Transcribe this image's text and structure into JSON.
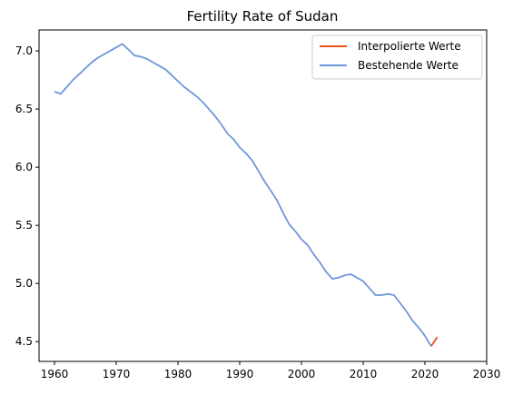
{
  "chart_data": {
    "type": "line",
    "title": "Fertility Rate of Sudan",
    "xlabel": "",
    "ylabel": "",
    "xlim": [
      1957.5,
      2030
    ],
    "ylim": [
      4.33,
      7.18
    ],
    "x_ticks": [
      1960,
      1970,
      1980,
      1990,
      2000,
      2010,
      2020,
      2030
    ],
    "y_ticks": [
      4.5,
      5.0,
      5.5,
      6.0,
      6.5,
      7.0
    ],
    "grid": false,
    "legend_position": "top-right",
    "series": [
      {
        "name": "Interpolierte Werte",
        "color": "#e8501c",
        "x": [
          2021,
          2022
        ],
        "y": [
          4.46,
          4.54
        ]
      },
      {
        "name": "Bestehende Werte",
        "color": "#6f96dc",
        "x": [
          1960,
          1961,
          1962,
          1963,
          1964,
          1965,
          1966,
          1967,
          1968,
          1969,
          1970,
          1971,
          1972,
          1973,
          1974,
          1975,
          1976,
          1977,
          1978,
          1979,
          1980,
          1981,
          1982,
          1983,
          1984,
          1985,
          1986,
          1987,
          1988,
          1989,
          1990,
          1991,
          1992,
          1993,
          1994,
          1995,
          1996,
          1997,
          1998,
          1999,
          2000,
          2001,
          2002,
          2003,
          2004,
          2005,
          2006,
          2007,
          2008,
          2009,
          2010,
          2011,
          2012,
          2013,
          2014,
          2015,
          2016,
          2017,
          2018,
          2019,
          2020,
          2021
        ],
        "y": [
          6.65,
          6.63,
          6.69,
          6.75,
          6.8,
          6.85,
          6.9,
          6.94,
          6.97,
          7.0,
          7.03,
          7.06,
          7.01,
          6.96,
          6.95,
          6.93,
          6.9,
          6.87,
          6.84,
          6.79,
          6.74,
          6.69,
          6.65,
          6.61,
          6.56,
          6.5,
          6.44,
          6.37,
          6.29,
          6.24,
          6.17,
          6.12,
          6.06,
          5.97,
          5.88,
          5.8,
          5.72,
          5.61,
          5.51,
          5.45,
          5.38,
          5.33,
          5.25,
          5.18,
          5.1,
          5.04,
          5.05,
          5.07,
          5.08,
          5.05,
          5.02,
          4.96,
          4.9,
          4.9,
          4.91,
          4.9,
          4.83,
          4.76,
          4.68,
          4.62,
          4.55,
          4.46
        ]
      }
    ]
  }
}
